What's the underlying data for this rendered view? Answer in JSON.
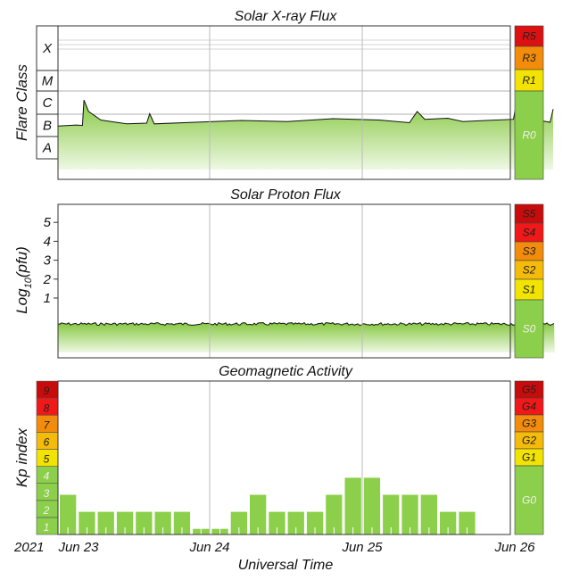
{
  "chart_data": [
    {
      "type": "area",
      "title": "Solar X-ray Flux",
      "ylabel": "Flare Class",
      "y_classes": [
        "A",
        "B",
        "C",
        "M",
        "X"
      ],
      "x_range": [
        "2021-06-22T12:00",
        "2021-06-26T00:00"
      ],
      "series": [
        {
          "values": [
            {
              "t": 0.0,
              "v": 1.45
            },
            {
              "t": 0.12,
              "v": 1.5
            },
            {
              "t": 0.16,
              "v": 1.48
            },
            {
              "t": 0.17,
              "v": 2.6
            },
            {
              "t": 0.2,
              "v": 2.1
            },
            {
              "t": 0.28,
              "v": 1.72
            },
            {
              "t": 0.45,
              "v": 1.55
            },
            {
              "t": 0.58,
              "v": 1.58
            },
            {
              "t": 0.6,
              "v": 2.0
            },
            {
              "t": 0.63,
              "v": 1.55
            },
            {
              "t": 0.9,
              "v": 1.62
            },
            {
              "t": 1.2,
              "v": 1.7
            },
            {
              "t": 1.5,
              "v": 1.65
            },
            {
              "t": 1.8,
              "v": 1.78
            },
            {
              "t": 2.1,
              "v": 1.72
            },
            {
              "t": 2.3,
              "v": 1.6
            },
            {
              "t": 2.35,
              "v": 2.1
            },
            {
              "t": 2.4,
              "v": 1.75
            },
            {
              "t": 2.55,
              "v": 1.8
            },
            {
              "t": 2.65,
              "v": 1.65
            },
            {
              "t": 2.8,
              "v": 1.7
            },
            {
              "t": 2.98,
              "v": 1.75
            },
            {
              "t": 3.0,
              "v": 2.5
            },
            {
              "t": 3.05,
              "v": 1.8
            },
            {
              "t": 3.15,
              "v": 1.7
            },
            {
              "t": 3.22,
              "v": 1.62
            },
            {
              "t": 3.24,
              "v": 2.2
            }
          ]
        }
      ],
      "scale": [
        {
          "label": "R5",
          "color": "#dd1111",
          "text": "#222222"
        },
        {
          "label": "R3",
          "color": "#f28c0a",
          "text": "#222222"
        },
        {
          "label": "R1",
          "color": "#f2e400",
          "text": "#222222"
        },
        {
          "label": "R0",
          "color": "#8ccf4a",
          "text": "#f0f0f0"
        }
      ]
    },
    {
      "type": "area",
      "title": "Solar Proton Flux",
      "ylabel": "Log10(pfu)",
      "ylabel_base": "Log",
      "ylabel_sub": "10",
      "ylabel_tail": "(pfu)",
      "ylim": [
        -1,
        6
      ],
      "y_ticks": [
        "1",
        "2",
        "3",
        "4",
        "5"
      ],
      "x_range": [
        "2021-06-22T12:00",
        "2021-06-26T00:00"
      ],
      "series": [
        {
          "values": [
            {
              "t": 0.0,
              "v": -0.38
            },
            {
              "t": 3.25,
              "v": -0.38
            }
          ]
        }
      ],
      "scale": [
        {
          "label": "S5",
          "color": "#c80c0c",
          "text": "#222222"
        },
        {
          "label": "S4",
          "color": "#f01818",
          "text": "#222222"
        },
        {
          "label": "S3",
          "color": "#f28c0a",
          "text": "#222222"
        },
        {
          "label": "S2",
          "color": "#f5bb0a",
          "text": "#222222"
        },
        {
          "label": "S1",
          "color": "#f2e400",
          "text": "#222222"
        },
        {
          "label": "S0",
          "color": "#8ccf4a",
          "text": "#f0f0f0"
        }
      ]
    },
    {
      "type": "bar",
      "title": "Geomagnetic Activity",
      "ylabel": "Kp index",
      "ylim": [
        0,
        9
      ],
      "kp_levels": [
        {
          "label": "1",
          "color": "#8ccf4a"
        },
        {
          "label": "2",
          "color": "#8ccf4a"
        },
        {
          "label": "3",
          "color": "#8ccf4a"
        },
        {
          "label": "4",
          "color": "#8ccf4a"
        },
        {
          "label": "5",
          "color": "#f2e400"
        },
        {
          "label": "6",
          "color": "#f5bb0a"
        },
        {
          "label": "7",
          "color": "#f28c0a"
        },
        {
          "label": "8",
          "color": "#f01818"
        },
        {
          "label": "9",
          "color": "#c80c0c"
        }
      ],
      "values": [
        2.33,
        1.33,
        1.33,
        1.33,
        1.33,
        1.33,
        1.33,
        0.33,
        0.33,
        1.33,
        2.33,
        1.33,
        1.33,
        1.33,
        2.33,
        3.33,
        3.33,
        2.33,
        2.33,
        2.33,
        1.33,
        1.33
      ],
      "bar_interval_hours": 3,
      "scale": [
        {
          "label": "G5",
          "color": "#c80c0c",
          "text": "#222222"
        },
        {
          "label": "G4",
          "color": "#f01818",
          "text": "#222222"
        },
        {
          "label": "G3",
          "color": "#f28c0a",
          "text": "#222222"
        },
        {
          "label": "G2",
          "color": "#f5bb0a",
          "text": "#222222"
        },
        {
          "label": "G1",
          "color": "#f2e400",
          "text": "#222222"
        },
        {
          "label": "G0",
          "color": "#8ccf4a",
          "text": "#f0f0f0"
        }
      ]
    }
  ],
  "x_axis": {
    "year_label": "2021",
    "ticks": [
      "Jun 23",
      "Jun 24",
      "Jun 25",
      "Jun 26"
    ],
    "xlabel": "Universal Time"
  },
  "colors": {
    "fill_top": "#86c840",
    "fill_bottom": "#eef8e4",
    "line": "#111111",
    "grid": "#bbbbbb"
  }
}
